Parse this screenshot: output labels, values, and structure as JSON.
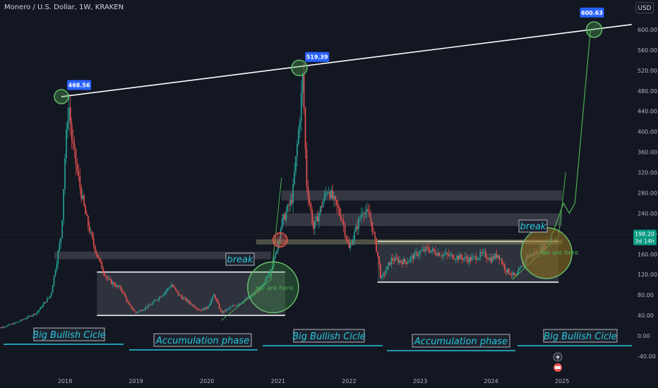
{
  "header": {
    "symbol_title": "Monero / U.S. Dollar, 1W, KRAKEN",
    "currency_button": "USD"
  },
  "current_price": {
    "value": "198.20",
    "countdown": "3d 14h"
  },
  "chart_data": {
    "type": "candlestick",
    "title": "Monero / U.S. Dollar, 1W, KRAKEN",
    "x_ticks": [
      "2018",
      "2019",
      "2020",
      "2021",
      "2022",
      "2023",
      "2024",
      "2025"
    ],
    "y_ticks": [
      -40,
      0,
      40,
      80,
      120,
      160,
      200,
      240,
      280,
      320,
      360,
      400,
      440,
      480,
      520,
      560,
      600
    ],
    "ylim": [
      -50,
      640
    ],
    "price_path": [
      [
        2017.0,
        12
      ],
      [
        2017.3,
        25
      ],
      [
        2017.6,
        45
      ],
      [
        2017.8,
        80
      ],
      [
        2017.95,
        200
      ],
      [
        2018.0,
        350
      ],
      [
        2018.05,
        460
      ],
      [
        2018.1,
        380
      ],
      [
        2018.2,
        300
      ],
      [
        2018.3,
        230
      ],
      [
        2018.4,
        180
      ],
      [
        2018.5,
        140
      ],
      [
        2018.6,
        110
      ],
      [
        2018.7,
        100
      ],
      [
        2018.8,
        90
      ],
      [
        2018.9,
        60
      ],
      [
        2019.0,
        45
      ],
      [
        2019.2,
        60
      ],
      [
        2019.4,
        85
      ],
      [
        2019.5,
        100
      ],
      [
        2019.6,
        80
      ],
      [
        2019.8,
        60
      ],
      [
        2019.9,
        50
      ],
      [
        2020.0,
        55
      ],
      [
        2020.1,
        80
      ],
      [
        2020.2,
        45
      ],
      [
        2020.4,
        60
      ],
      [
        2020.6,
        75
      ],
      [
        2020.8,
        100
      ],
      [
        2020.95,
        150
      ],
      [
        2021.05,
        220
      ],
      [
        2021.2,
        270
      ],
      [
        2021.3,
        420
      ],
      [
        2021.35,
        510
      ],
      [
        2021.4,
        300
      ],
      [
        2021.5,
        210
      ],
      [
        2021.6,
        250
      ],
      [
        2021.7,
        290
      ],
      [
        2021.8,
        260
      ],
      [
        2021.9,
        230
      ],
      [
        2022.0,
        170
      ],
      [
        2022.2,
        250
      ],
      [
        2022.3,
        230
      ],
      [
        2022.4,
        160
      ],
      [
        2022.45,
        110
      ],
      [
        2022.6,
        150
      ],
      [
        2022.8,
        145
      ],
      [
        2022.95,
        160
      ],
      [
        2023.1,
        170
      ],
      [
        2023.3,
        160
      ],
      [
        2023.5,
        155
      ],
      [
        2023.7,
        150
      ],
      [
        2023.9,
        160
      ],
      [
        2024.0,
        150
      ],
      [
        2024.1,
        160
      ],
      [
        2024.2,
        130
      ],
      [
        2024.35,
        115
      ],
      [
        2024.5,
        155
      ],
      [
        2024.6,
        160
      ],
      [
        2024.75,
        175
      ],
      [
        2024.85,
        195
      ]
    ],
    "price_tags": [
      "468.56",
      "519.39",
      "600.63"
    ],
    "trendline": {
      "from": [
        2017.95,
        468.56
      ],
      "to": [
        2025.98,
        610
      ]
    },
    "accumulation_ranges": [
      {
        "x": [
          2018.45,
          2021.1
        ],
        "y": [
          40,
          125
        ]
      },
      {
        "x": [
          2022.4,
          2024.95
        ],
        "y": [
          105,
          185
        ]
      }
    ],
    "resistance_zones": [
      {
        "x": [
          2017.85,
          2020.9
        ],
        "y": [
          150,
          165
        ]
      },
      {
        "x": [
          2021.05,
          2025.0
        ],
        "y": [
          265,
          285
        ]
      },
      {
        "x": [
          2021.05,
          2025.0
        ],
        "y": [
          215,
          240
        ]
      }
    ],
    "breakout_line": {
      "x": [
        2020.7,
        2025.0
      ],
      "y": [
        180,
        188
      ]
    },
    "projection_path": [
      [
        2024.85,
        195
      ],
      [
        2025.02,
        260
      ],
      [
        2025.1,
        240
      ],
      [
        2025.18,
        260
      ],
      [
        2025.4,
        600
      ]
    ],
    "annotations": {
      "phase_labels": [
        "Big Bullish Cicle",
        "Accumulation phase",
        "Big Bullish Cicle",
        "Accumulation phase",
        "Big Bullish Cicle"
      ],
      "break_labels": [
        "break",
        "break"
      ],
      "we_are_here": [
        "we are here",
        "we are here"
      ]
    }
  },
  "colors": {
    "up": "#26a69a",
    "down": "#ef5350",
    "accent": "#2962ff",
    "trendline": "#ffffff",
    "projection": "#4caf50",
    "phase_text": "#26c6da"
  }
}
